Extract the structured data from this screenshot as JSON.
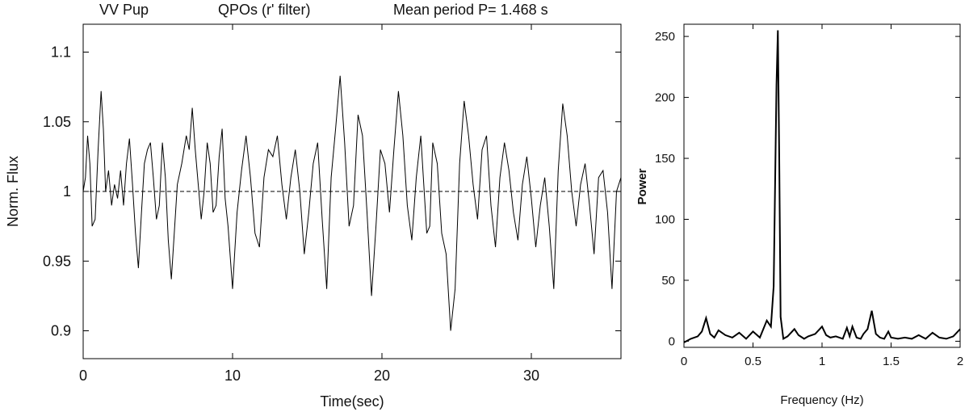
{
  "header": {
    "object": "VV Pup",
    "filter": "QPOs (r' filter)",
    "period": "Mean period P= 1.468 s"
  },
  "chart_data": [
    {
      "type": "line",
      "xlabel": "Time(sec)",
      "ylabel": "Norm. Flux",
      "xlim": [
        0,
        36
      ],
      "ylim": [
        0.88,
        1.12
      ],
      "x_ticks": [
        0,
        10,
        20,
        30
      ],
      "y_ticks": [
        "0.9",
        "0.95",
        "1",
        "1.05",
        "1.1"
      ],
      "reference_line": {
        "y": 1.0,
        "style": "dashed"
      },
      "series": [
        {
          "x": [
            0,
            0.15,
            0.3,
            0.45,
            0.6,
            0.8,
            1.0,
            1.2,
            1.35,
            1.5,
            1.7,
            1.9,
            2.1,
            2.3,
            2.5,
            2.7,
            2.9,
            3.1,
            3.3,
            3.5,
            3.7,
            3.9,
            4.1,
            4.3,
            4.5,
            4.7,
            4.9,
            5.1,
            5.3,
            5.5,
            5.7,
            5.9,
            6.1,
            6.3,
            6.6,
            6.9,
            7.1,
            7.3,
            7.5,
            7.7,
            7.9,
            8.1,
            8.3,
            8.5,
            8.7,
            8.9,
            9.1,
            9.3,
            9.5,
            9.7,
            10.0,
            10.3,
            10.6,
            10.9,
            11.2,
            11.5,
            11.8,
            12.1,
            12.4,
            12.7,
            13.0,
            13.3,
            13.6,
            13.9,
            14.2,
            14.5,
            14.8,
            15.1,
            15.4,
            15.7,
            16.0,
            16.3,
            16.6,
            16.9,
            17.2,
            17.5,
            17.8,
            18.1,
            18.4,
            18.7,
            19.0,
            19.3,
            19.6,
            19.9,
            20.2,
            20.5,
            20.8,
            21.1,
            21.4,
            21.7,
            22.0,
            22.3,
            22.6,
            22.8,
            23.0,
            23.2,
            23.4,
            23.7,
            24.0,
            24.3,
            24.6,
            24.9,
            25.2,
            25.5,
            25.8,
            26.1,
            26.4,
            26.7,
            27.0,
            27.3,
            27.6,
            27.9,
            28.2,
            28.5,
            28.8,
            29.1,
            29.4,
            29.7,
            30.0,
            30.3,
            30.6,
            30.9,
            31.2,
            31.5,
            31.8,
            32.1,
            32.4,
            32.7,
            33.0,
            33.3,
            33.6,
            33.9,
            34.2,
            34.5,
            34.8,
            35.1,
            35.4,
            35.7,
            36.0
          ],
          "y": [
            1.0,
            1.01,
            1.04,
            1.02,
            0.975,
            0.98,
            1.03,
            1.072,
            1.045,
            1.0,
            1.015,
            0.99,
            1.005,
            0.995,
            1.015,
            0.99,
            1.02,
            1.038,
            1.005,
            0.97,
            0.945,
            0.985,
            1.02,
            1.03,
            1.035,
            1.01,
            0.98,
            0.99,
            1.035,
            1.01,
            0.965,
            0.937,
            0.97,
            1.005,
            1.02,
            1.04,
            1.03,
            1.06,
            1.03,
            1.005,
            0.98,
            1.0,
            1.035,
            1.02,
            0.985,
            0.99,
            1.025,
            1.045,
            0.995,
            0.975,
            0.93,
            0.985,
            1.015,
            1.04,
            1.01,
            0.97,
            0.96,
            1.01,
            1.03,
            1.025,
            1.04,
            1.005,
            0.98,
            1.01,
            1.03,
            1.0,
            0.955,
            0.985,
            1.02,
            1.035,
            0.98,
            0.93,
            1.01,
            1.045,
            1.083,
            1.035,
            0.975,
            0.99,
            1.055,
            1.04,
            0.985,
            0.925,
            0.975,
            1.03,
            1.02,
            0.985,
            1.03,
            1.072,
            1.04,
            0.99,
            0.965,
            1.01,
            1.04,
            1.005,
            0.97,
            0.975,
            1.035,
            1.02,
            0.97,
            0.955,
            0.9,
            0.93,
            1.02,
            1.065,
            1.04,
            1.005,
            0.98,
            1.03,
            1.04,
            0.99,
            0.96,
            1.01,
            1.035,
            1.015,
            0.985,
            0.965,
            1.005,
            1.025,
            0.995,
            0.96,
            0.99,
            1.01,
            0.975,
            0.93,
            1.015,
            1.063,
            1.04,
            1.0,
            0.975,
            1.005,
            1.02,
            0.99,
            0.955,
            1.01,
            1.015,
            0.985,
            0.93,
            1.0,
            1.01
          ]
        }
      ]
    },
    {
      "type": "line",
      "xlabel": "Frequency (Hz)",
      "ylabel": "Power",
      "xlim": [
        0,
        2
      ],
      "ylim": [
        -5,
        260
      ],
      "x_ticks": [
        "0",
        "0.5",
        "1",
        "1.5",
        "2"
      ],
      "y_ticks": [
        0,
        50,
        100,
        150,
        200,
        250
      ],
      "series": [
        {
          "x": [
            0,
            0.05,
            0.1,
            0.13,
            0.16,
            0.19,
            0.22,
            0.25,
            0.3,
            0.35,
            0.4,
            0.45,
            0.5,
            0.55,
            0.6,
            0.63,
            0.65,
            0.67,
            0.68,
            0.69,
            0.7,
            0.72,
            0.75,
            0.8,
            0.83,
            0.87,
            0.9,
            0.95,
            1.0,
            1.03,
            1.06,
            1.1,
            1.15,
            1.18,
            1.2,
            1.22,
            1.25,
            1.28,
            1.3,
            1.33,
            1.36,
            1.39,
            1.42,
            1.45,
            1.48,
            1.5,
            1.55,
            1.6,
            1.65,
            1.7,
            1.75,
            1.8,
            1.85,
            1.9,
            1.95,
            2.0
          ],
          "y": [
            -1,
            2,
            4,
            8,
            19,
            6,
            3,
            9,
            5,
            3,
            7,
            2,
            8,
            3,
            17,
            12,
            45,
            210,
            255,
            150,
            20,
            2,
            4,
            10,
            5,
            2,
            4,
            6,
            12,
            5,
            3,
            4,
            2,
            11,
            4,
            12,
            3,
            2,
            6,
            10,
            25,
            6,
            3,
            2,
            8,
            3,
            2,
            3,
            2,
            5,
            2,
            7,
            3,
            2,
            4,
            10
          ]
        }
      ]
    }
  ]
}
